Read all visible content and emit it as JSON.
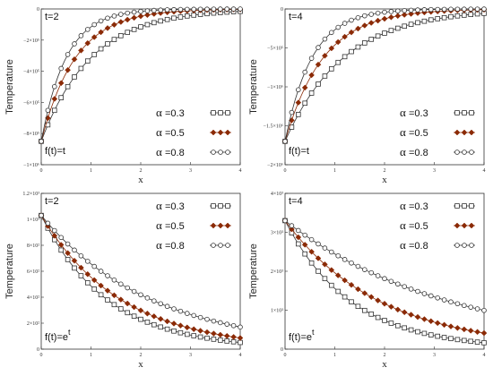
{
  "chart_data": [
    {
      "type": "line",
      "condition": "t=2",
      "note": "f(t)=t",
      "ylabel": "Temperature",
      "xlabel": "x",
      "xlim": [
        0,
        4
      ],
      "ylim": [
        -1000000,
        0
      ],
      "x_ticks": [
        "0",
        "1",
        "2",
        "3",
        "4"
      ],
      "y_ticks": [
        {
          "value": 0,
          "label": "0"
        },
        {
          "value": -200000,
          "label": "−2×10⁵"
        },
        {
          "value": -400000,
          "label": "−4×10⁵"
        },
        {
          "value": -600000,
          "label": "−6×10⁵"
        },
        {
          "value": -800000,
          "label": "−8×10⁵"
        },
        {
          "value": -1000000,
          "label": "−1×10⁶"
        }
      ],
      "legend_position": "bottom-right",
      "series": [
        {
          "name": "=0.3",
          "marker": "square",
          "color": "#333333",
          "start": -850000,
          "decay": 1.0
        },
        {
          "name": "=0.5",
          "marker": "diamond",
          "color": "#8b2a06",
          "start": -850000,
          "decay": 1.45
        },
        {
          "name": "=0.8",
          "marker": "circle",
          "color": "#333333",
          "start": -850000,
          "decay": 2.0
        }
      ]
    },
    {
      "type": "line",
      "condition": "t=4",
      "note": "f(t)=t",
      "ylabel": "Temperature",
      "xlabel": "x",
      "xlim": [
        0,
        4
      ],
      "ylim": [
        -2000000,
        0
      ],
      "x_ticks": [
        "0",
        "1",
        "2",
        "3",
        "4"
      ],
      "y_ticks": [
        {
          "value": 0,
          "label": "0"
        },
        {
          "value": -500000,
          "label": "−5×10⁵"
        },
        {
          "value": -1000000,
          "label": "−1×10⁶"
        },
        {
          "value": -1500000,
          "label": "−1.5×10⁶"
        },
        {
          "value": -2000000,
          "label": "−2×10⁶"
        }
      ],
      "legend_position": "bottom-right",
      "series": [
        {
          "name": "=0.3",
          "marker": "square",
          "color": "#333333",
          "start": -1700000,
          "decay": 0.85
        },
        {
          "name": "=0.5",
          "marker": "diamond",
          "color": "#8b2a06",
          "start": -1700000,
          "decay": 1.3
        },
        {
          "name": "=0.8",
          "marker": "circle",
          "color": "#333333",
          "start": -1700000,
          "decay": 1.85
        }
      ]
    },
    {
      "type": "line",
      "condition": "t=2",
      "note_base": "f(t)=e",
      "note_sup": "t",
      "ylabel": "Temperature",
      "xlabel": "x",
      "xlim": [
        0,
        4
      ],
      "ylim": [
        0,
        1200
      ],
      "x_ticks": [
        "0",
        "1",
        "2",
        "3",
        "4"
      ],
      "y_ticks": [
        {
          "value": 0,
          "label": "0"
        },
        {
          "value": 200,
          "label": "2×10²"
        },
        {
          "value": 400,
          "label": "4×10²"
        },
        {
          "value": 600,
          "label": "6×10²"
        },
        {
          "value": 800,
          "label": "8×10²"
        },
        {
          "value": 1000,
          "label": "1×10³"
        },
        {
          "value": 1200,
          "label": "1.2×10³"
        }
      ],
      "legend_position": "top-right",
      "series": [
        {
          "name": "=0.3",
          "marker": "square",
          "color": "#333333",
          "start": 1030,
          "decay": 0.75
        },
        {
          "name": "=0.5",
          "marker": "diamond",
          "color": "#8b2a06",
          "start": 1030,
          "decay": 0.62
        },
        {
          "name": "=0.8",
          "marker": "circle",
          "color": "#333333",
          "start": 1030,
          "decay": 0.45
        }
      ]
    },
    {
      "type": "line",
      "condition": "t=4",
      "note_base": "f(t)=e",
      "note_sup": "t",
      "ylabel": "Temperature",
      "xlabel": "x",
      "xlim": [
        0,
        4
      ],
      "ylim": [
        0,
        4000
      ],
      "x_ticks": [
        "0",
        "1",
        "2",
        "3",
        "4"
      ],
      "y_ticks": [
        {
          "value": 0,
          "label": "0"
        },
        {
          "value": 1000,
          "label": "1×10³"
        },
        {
          "value": 2000,
          "label": "2×10³"
        },
        {
          "value": 3000,
          "label": "3×10³"
        },
        {
          "value": 4000,
          "label": "4×10³"
        }
      ],
      "legend_position": "top-right",
      "series": [
        {
          "name": "=0.3",
          "marker": "square",
          "color": "#333333",
          "start": 3300,
          "decay": 0.75
        },
        {
          "name": "=0.5",
          "marker": "diamond",
          "color": "#8b2a06",
          "start": 3300,
          "decay": 0.52
        },
        {
          "name": "=0.8",
          "marker": "circle",
          "color": "#333333",
          "start": 3300,
          "decay": 0.3
        }
      ]
    }
  ]
}
